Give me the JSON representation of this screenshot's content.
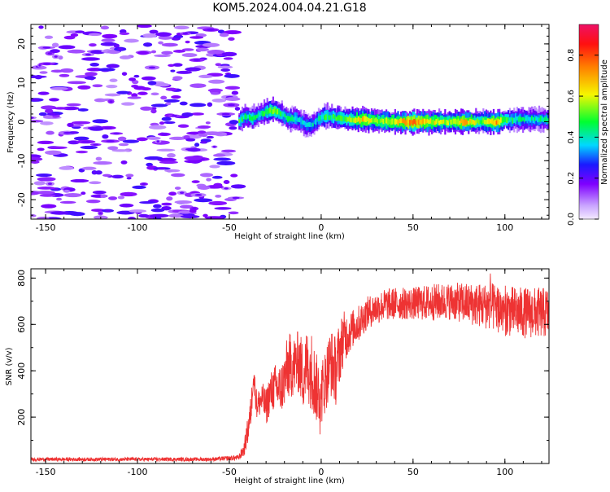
{
  "title": "KOM5.2024.004.04.21.G18",
  "chart_data": [
    {
      "type": "heatmap",
      "title": "",
      "xlabel": "Height of straight line (km)",
      "ylabel": "Frequency (Hz)",
      "xlim": [
        -158,
        124
      ],
      "ylim": [
        -25,
        25
      ],
      "x_ticks": [
        -150,
        -100,
        -50,
        0,
        50,
        100
      ],
      "y_ticks": [
        -20,
        -10,
        0,
        10,
        20
      ],
      "colorbar": {
        "label": "Normalized spectral amplitude",
        "range": [
          0,
          0.95
        ],
        "ticks": [
          0.0,
          0.2,
          0.4,
          0.6,
          0.8
        ]
      },
      "noise_region": {
        "x_range": [
          -158,
          -45
        ],
        "amplitude_range": [
          0.08,
          0.25
        ]
      },
      "signal_ridge": [
        {
          "x": -45,
          "freq": 0.0,
          "amp": 0.45
        },
        {
          "x": -42,
          "freq": 1.5,
          "amp": 0.4
        },
        {
          "x": -38,
          "freq": 1.0,
          "amp": 0.45
        },
        {
          "x": -34,
          "freq": 1.8,
          "amp": 0.4
        },
        {
          "x": -30,
          "freq": 2.5,
          "amp": 0.45
        },
        {
          "x": -26,
          "freq": 3.0,
          "amp": 0.55
        },
        {
          "x": -22,
          "freq": 2.0,
          "amp": 0.45
        },
        {
          "x": -18,
          "freq": 0.5,
          "amp": 0.4
        },
        {
          "x": -14,
          "freq": 1.0,
          "amp": 0.4
        },
        {
          "x": -10,
          "freq": -0.5,
          "amp": 0.35
        },
        {
          "x": -6,
          "freq": -1.0,
          "amp": 0.35
        },
        {
          "x": -2,
          "freq": 0.5,
          "amp": 0.4
        },
        {
          "x": 2,
          "freq": 1.5,
          "amp": 0.45
        },
        {
          "x": 8,
          "freq": 1.0,
          "amp": 0.45
        },
        {
          "x": 15,
          "freq": 0.7,
          "amp": 0.5
        },
        {
          "x": 22,
          "freq": 0.5,
          "amp": 0.65
        },
        {
          "x": 30,
          "freq": 0.3,
          "amp": 0.55
        },
        {
          "x": 40,
          "freq": 0.0,
          "amp": 0.6
        },
        {
          "x": 50,
          "freq": 0.0,
          "amp": 0.75
        },
        {
          "x": 60,
          "freq": 0.0,
          "amp": 0.6
        },
        {
          "x": 70,
          "freq": 0.0,
          "amp": 0.55
        },
        {
          "x": 78,
          "freq": 0.0,
          "amp": 0.7
        },
        {
          "x": 86,
          "freq": 0.0,
          "amp": 0.5
        },
        {
          "x": 95,
          "freq": 0.0,
          "amp": 0.7
        },
        {
          "x": 100,
          "freq": 0.5,
          "amp": 0.45
        },
        {
          "x": 110,
          "freq": 0.7,
          "amp": 0.4
        },
        {
          "x": 124,
          "freq": 0.5,
          "amp": 0.4
        }
      ]
    },
    {
      "type": "line",
      "title": "",
      "xlabel": "Height of straight line (km)",
      "ylabel": "SNR (v/v)",
      "xlim": [
        -158,
        124
      ],
      "ylim": [
        0,
        840
      ],
      "x_ticks": [
        -150,
        -100,
        -50,
        0,
        50,
        100
      ],
      "y_ticks": [
        200,
        400,
        600,
        800
      ],
      "color": "#ee3333",
      "series": [
        {
          "name": "",
          "x": [
            -158,
            -140,
            -120,
            -100,
            -80,
            -60,
            -45,
            -42,
            -40,
            -38,
            -37,
            -35,
            -32,
            -30,
            -28,
            -25,
            -22,
            -20,
            -18,
            -15,
            -12,
            -10,
            -8,
            -5,
            -3,
            0,
            3,
            5,
            8,
            10,
            12,
            15,
            18,
            20,
            25,
            30,
            35,
            40,
            50,
            60,
            70,
            80,
            90,
            96,
            100,
            110,
            124
          ],
          "mean": [
            18,
            18,
            18,
            18,
            18,
            18,
            25,
            60,
            140,
            240,
            390,
            250,
            280,
            240,
            300,
            330,
            320,
            360,
            420,
            420,
            440,
            380,
            420,
            400,
            330,
            300,
            380,
            440,
            400,
            480,
            540,
            560,
            590,
            600,
            650,
            670,
            685,
            690,
            690,
            695,
            700,
            690,
            680,
            670,
            660,
            650,
            650
          ],
          "spread": [
            8,
            8,
            8,
            8,
            8,
            8,
            12,
            30,
            60,
            70,
            60,
            60,
            70,
            80,
            90,
            100,
            110,
            120,
            150,
            130,
            140,
            150,
            160,
            170,
            150,
            140,
            140,
            150,
            150,
            140,
            120,
            90,
            80,
            80,
            70,
            70,
            70,
            70,
            70,
            80,
            80,
            90,
            100,
            110,
            110,
            110,
            110
          ]
        }
      ]
    }
  ]
}
